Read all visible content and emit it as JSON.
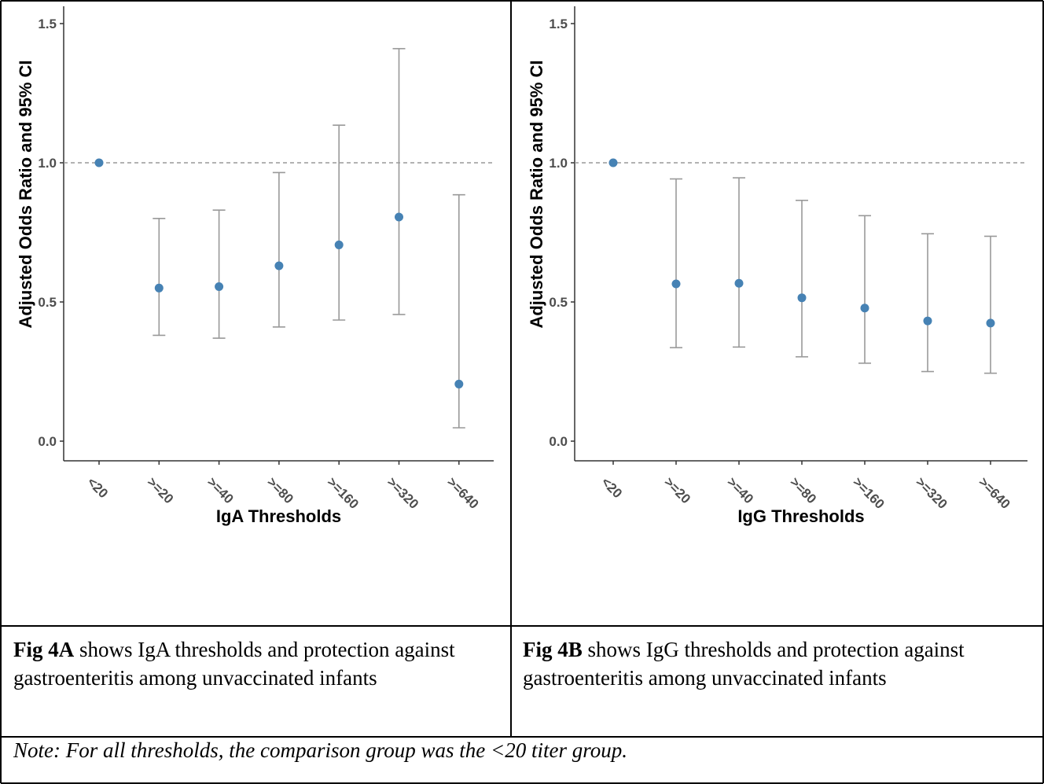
{
  "chart_data": [
    {
      "type": "scatter",
      "panel": "A",
      "xlabel": "IgA Thresholds",
      "ylabel": "Adjusted Odds Ratio and 95% CI",
      "ylim": [
        0,
        1.55
      ],
      "yticks": [
        "0.0",
        "0.5",
        "1.0",
        "1.5"
      ],
      "categories": [
        "<20",
        ">=20",
        ">=40",
        ">=80",
        ">=160",
        ">=320",
        ">=640"
      ],
      "values": [
        1.0,
        0.55,
        0.555,
        0.63,
        0.705,
        0.805,
        0.205
      ],
      "lower": [
        null,
        0.38,
        0.37,
        0.41,
        0.435,
        0.455,
        0.048
      ],
      "upper": [
        null,
        0.8,
        0.83,
        0.965,
        1.135,
        1.41,
        0.885
      ],
      "reference_line": 1.0,
      "grid": false,
      "point_color": "#4682B4",
      "errorbar_color": "#999999"
    },
    {
      "type": "scatter",
      "panel": "B",
      "xlabel": "IgG Thresholds",
      "ylabel": "Adjusted Odds Ratio and 95% CI",
      "ylim": [
        0,
        1.55
      ],
      "yticks": [
        "0.0",
        "0.5",
        "1.0",
        "1.5"
      ],
      "categories": [
        "<20",
        ">=20",
        ">=40",
        ">=80",
        ">=160",
        ">=320",
        ">=640"
      ],
      "values": [
        1.0,
        0.565,
        0.567,
        0.515,
        0.478,
        0.432,
        0.424
      ],
      "lower": [
        null,
        0.336,
        0.338,
        0.303,
        0.28,
        0.25,
        0.244
      ],
      "upper": [
        null,
        0.942,
        0.946,
        0.865,
        0.81,
        0.745,
        0.736
      ],
      "reference_line": 1.0,
      "grid": false,
      "point_color": "#4682B4",
      "errorbar_color": "#999999"
    }
  ],
  "captions": {
    "a_bold": "Fig 4A",
    "a_text": " shows IgA thresholds and protection against gastroenteritis among unvaccinated infants",
    "b_bold": "Fig 4B",
    "b_text": " shows IgG thresholds and protection against gastroenteritis among unvaccinated infants",
    "note": "Note: For all thresholds, the comparison group was the <20 titer group."
  }
}
